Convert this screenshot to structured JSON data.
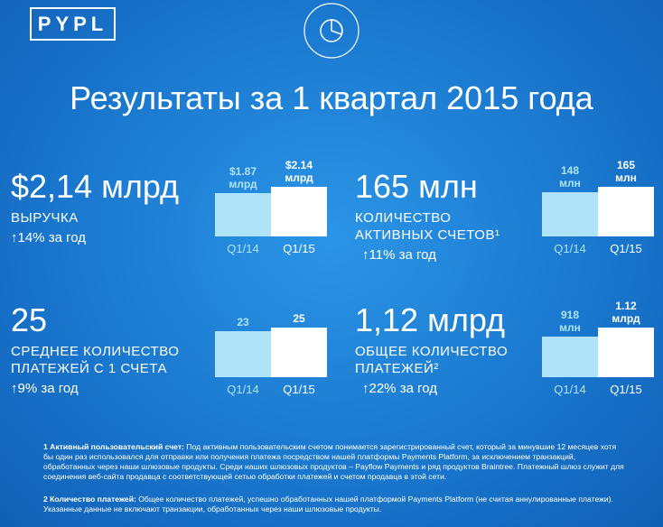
{
  "logo": "PYPL",
  "title": "Результаты за 1 квартал 2015 года",
  "chart_data": [
    {
      "type": "bar",
      "headline": "$2,14 млрд",
      "label": "ВЫРУЧКА",
      "change": "↑14% за год",
      "categories": [
        "Q1/14",
        "Q1/15"
      ],
      "values": [
        1.87,
        2.14
      ],
      "value_labels": [
        "$1.87\nмлрд",
        "$2.14\nмлрд"
      ],
      "colors": [
        "#aee3fa",
        "#ffffff"
      ]
    },
    {
      "type": "bar",
      "headline": "165 млн",
      "label": "КОЛИЧЕСТВО\nАКТИВНЫХ СЧЕТОВ¹",
      "change": "↑11% за год",
      "categories": [
        "Q1/14",
        "Q1/15"
      ],
      "values": [
        148,
        165
      ],
      "value_labels": [
        "148\nмлн",
        "165\nмлн"
      ],
      "colors": [
        "#aee3fa",
        "#ffffff"
      ]
    },
    {
      "type": "bar",
      "headline": "25",
      "label": "СРЕДНЕЕ КОЛИЧЕСТВО\nПЛАТЕЖЕЙ С 1 СЧЕТА",
      "change": "↑9% за год",
      "categories": [
        "Q1/14",
        "Q1/15"
      ],
      "values": [
        23,
        25
      ],
      "colors": [
        "#aee3fa",
        "#ffffff"
      ]
    },
    {
      "type": "bar",
      "headline": "1,12 млрд",
      "label": "ОБЩЕЕ КОЛИЧЕСТВО\nПЛАТЕЖЕЙ²",
      "change": "↑22% за год",
      "categories": [
        "Q1/14",
        "Q1/15"
      ],
      "values": [
        918,
        1120
      ],
      "value_labels": [
        "918\nмлн",
        "1.12\nмлрд"
      ],
      "colors": [
        "#aee3fa",
        "#ffffff"
      ]
    }
  ],
  "footnotes": [
    {
      "term": "1 Активный пользовательский счет:",
      "text": " Под активным пользовательским счетом понимается зарегистрированный счет, который за минувшие 12 месяцев хотя бы один раз использовался для отправки или получения платежа посредством нашей платформы Payments Platform, за исключением транзакций, обработанных через наши шлюзовые продукты. Среди наших шлюзовых продуктов – Payflow Payments и ряд продуктов Braintree. Платежный шлюз служит для соединения веб-сайта продавца с соответствующей сетью обработки платежей и счетом продавца в этой сети."
    },
    {
      "term": "2 Количество платежей:",
      "text": " Общее количество платежей, успешно обработанных нашей платформой Payments Platform (не считая аннулированные платежи). Указанные данные не включают транзакции, обработанных через наши шлюзовые продукты."
    }
  ]
}
